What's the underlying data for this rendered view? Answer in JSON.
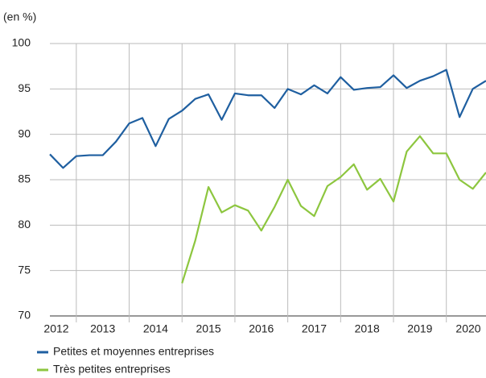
{
  "chart_data": {
    "type": "line",
    "ylabel": "(en %)",
    "x": [
      2012.5,
      2012.75,
      2013,
      2013.25,
      2013.5,
      2013.75,
      2014,
      2014.25,
      2014.5,
      2014.75,
      2015,
      2015.25,
      2015.5,
      2015.75,
      2016,
      2016.25,
      2016.5,
      2016.75,
      2017,
      2017.25,
      2017.5,
      2017.75,
      2018,
      2018.25,
      2018.5,
      2018.75,
      2019,
      2019.25,
      2019.5,
      2019.75,
      2020,
      2020.25,
      2020.5,
      2020.75
    ],
    "series": [
      {
        "name": "Petites et moyennes entreprises",
        "color": "#1f5fa0",
        "values": [
          87.8,
          86.3,
          87.6,
          87.7,
          87.7,
          89.2,
          91.2,
          91.8,
          88.7,
          91.7,
          92.6,
          93.9,
          94.4,
          91.6,
          94.5,
          94.3,
          94.3,
          92.9,
          95.0,
          94.4,
          95.4,
          94.5,
          96.3,
          94.9,
          95.1,
          95.2,
          96.5,
          95.1,
          95.9,
          96.4,
          97.1,
          91.9,
          95.0,
          95.9
        ]
      },
      {
        "name": "Très petites entreprises",
        "color": "#8dc63f",
        "values": [
          null,
          null,
          null,
          null,
          null,
          null,
          null,
          null,
          null,
          null,
          73.6,
          78.3,
          84.2,
          81.4,
          82.2,
          81.6,
          79.4,
          82.0,
          85.0,
          82.1,
          81.0,
          84.3,
          85.3,
          86.7,
          83.9,
          85.1,
          82.6,
          88.1,
          89.8,
          87.9,
          87.9,
          85.0,
          84.0,
          85.8
        ]
      }
    ],
    "xlim": [
      2012.5,
      2020.75
    ],
    "xticks": [
      {
        "value": 2012.5,
        "label": "2012"
      },
      {
        "value": 2013.5,
        "label": "2013"
      },
      {
        "value": 2014.5,
        "label": "2014"
      },
      {
        "value": 2015.5,
        "label": "2015"
      },
      {
        "value": 2016.5,
        "label": "2016"
      },
      {
        "value": 2017.5,
        "label": "2017"
      },
      {
        "value": 2018.5,
        "label": "2018"
      },
      {
        "value": 2019.5,
        "label": "2019"
      },
      {
        "value": 2020.5,
        "label": "2020"
      }
    ],
    "xgrid": [
      2013,
      2014,
      2015,
      2016,
      2017,
      2018,
      2019,
      2020
    ],
    "ylim": [
      70,
      100
    ],
    "yticks": [
      70,
      75,
      80,
      85,
      90,
      95,
      100
    ],
    "grid": true,
    "legend": "bottom"
  }
}
